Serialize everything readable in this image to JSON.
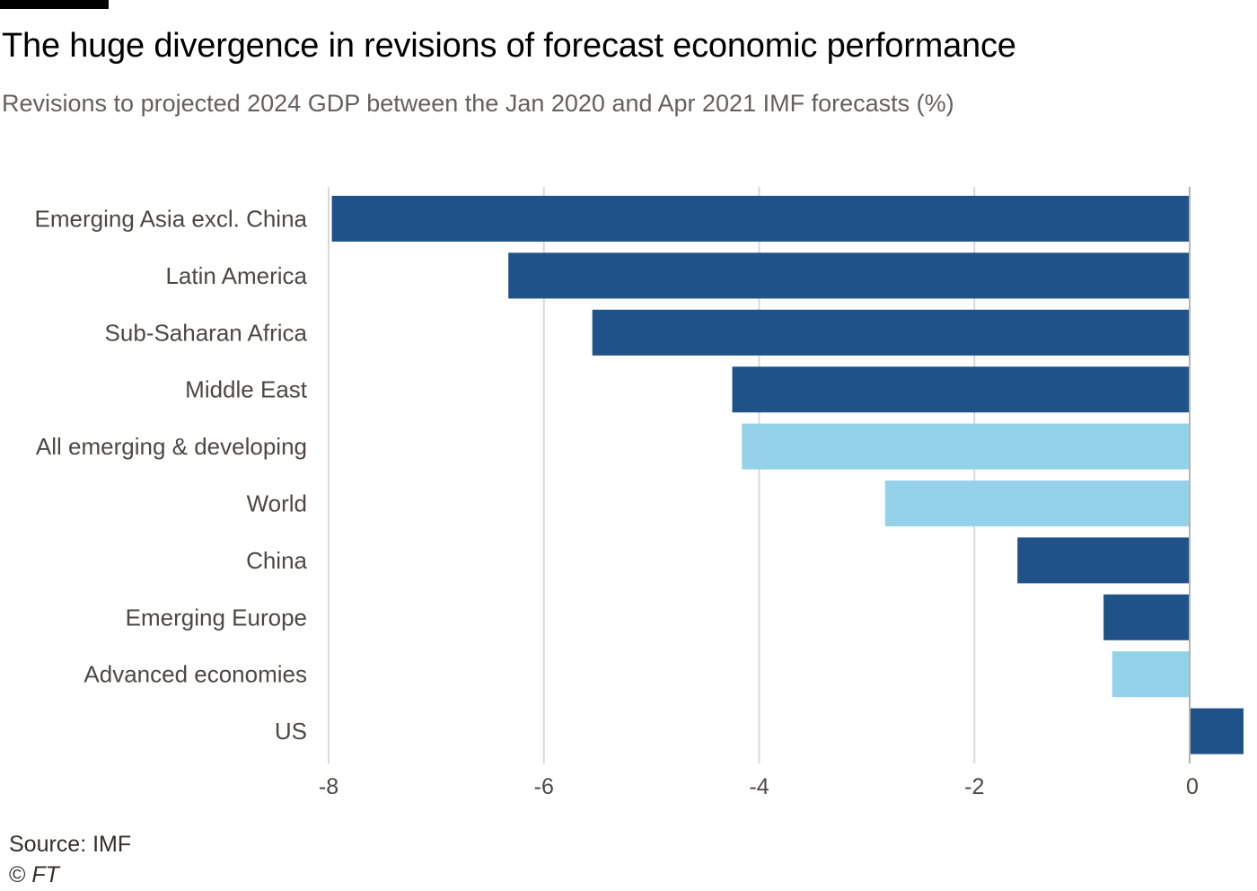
{
  "header": {
    "title": "The huge divergence in revisions of forecast economic performance",
    "subtitle": "Revisions to projected 2024 GDP between the Jan 2020 and Apr 2021 IMF forecasts (%)"
  },
  "footer": {
    "source": "Source: IMF",
    "copyright_symbol": "©",
    "copyright_owner": "FT"
  },
  "colors": {
    "regional": "#1f5288",
    "aggregate": "#93d2e8",
    "gridline": "#d9d9d9",
    "zero_line": "#b3b3b3",
    "text": "#4d4845",
    "top_rule": "#000000"
  },
  "chart_data": {
    "type": "bar",
    "orientation": "horizontal",
    "title": "The huge divergence in revisions of forecast economic performance",
    "subtitle": "Revisions to projected 2024 GDP between the Jan 2020 and Apr 2021 IMF forecasts (%)",
    "xlabel": "",
    "ylabel": "",
    "xlim": [
      -8,
      0.5
    ],
    "xticks": [
      -8,
      -6,
      -4,
      -2,
      0
    ],
    "xtick_labels": [
      "-8",
      "-6",
      "-4",
      "-2",
      "0"
    ],
    "grid": true,
    "legend": "none",
    "categories": [
      "Emerging Asia excl. China",
      "Latin America",
      "Sub-Saharan Africa",
      "Middle East",
      "All emerging & developing",
      "World",
      "China",
      "Emerging Europe",
      "Advanced economies",
      "US"
    ],
    "values": [
      -7.97,
      -6.33,
      -5.55,
      -4.25,
      -4.16,
      -2.83,
      -1.6,
      -0.8,
      -0.72,
      0.5
    ],
    "bar_color_keys": [
      "regional",
      "regional",
      "regional",
      "regional",
      "aggregate",
      "aggregate",
      "regional",
      "regional",
      "aggregate",
      "regional"
    ]
  }
}
